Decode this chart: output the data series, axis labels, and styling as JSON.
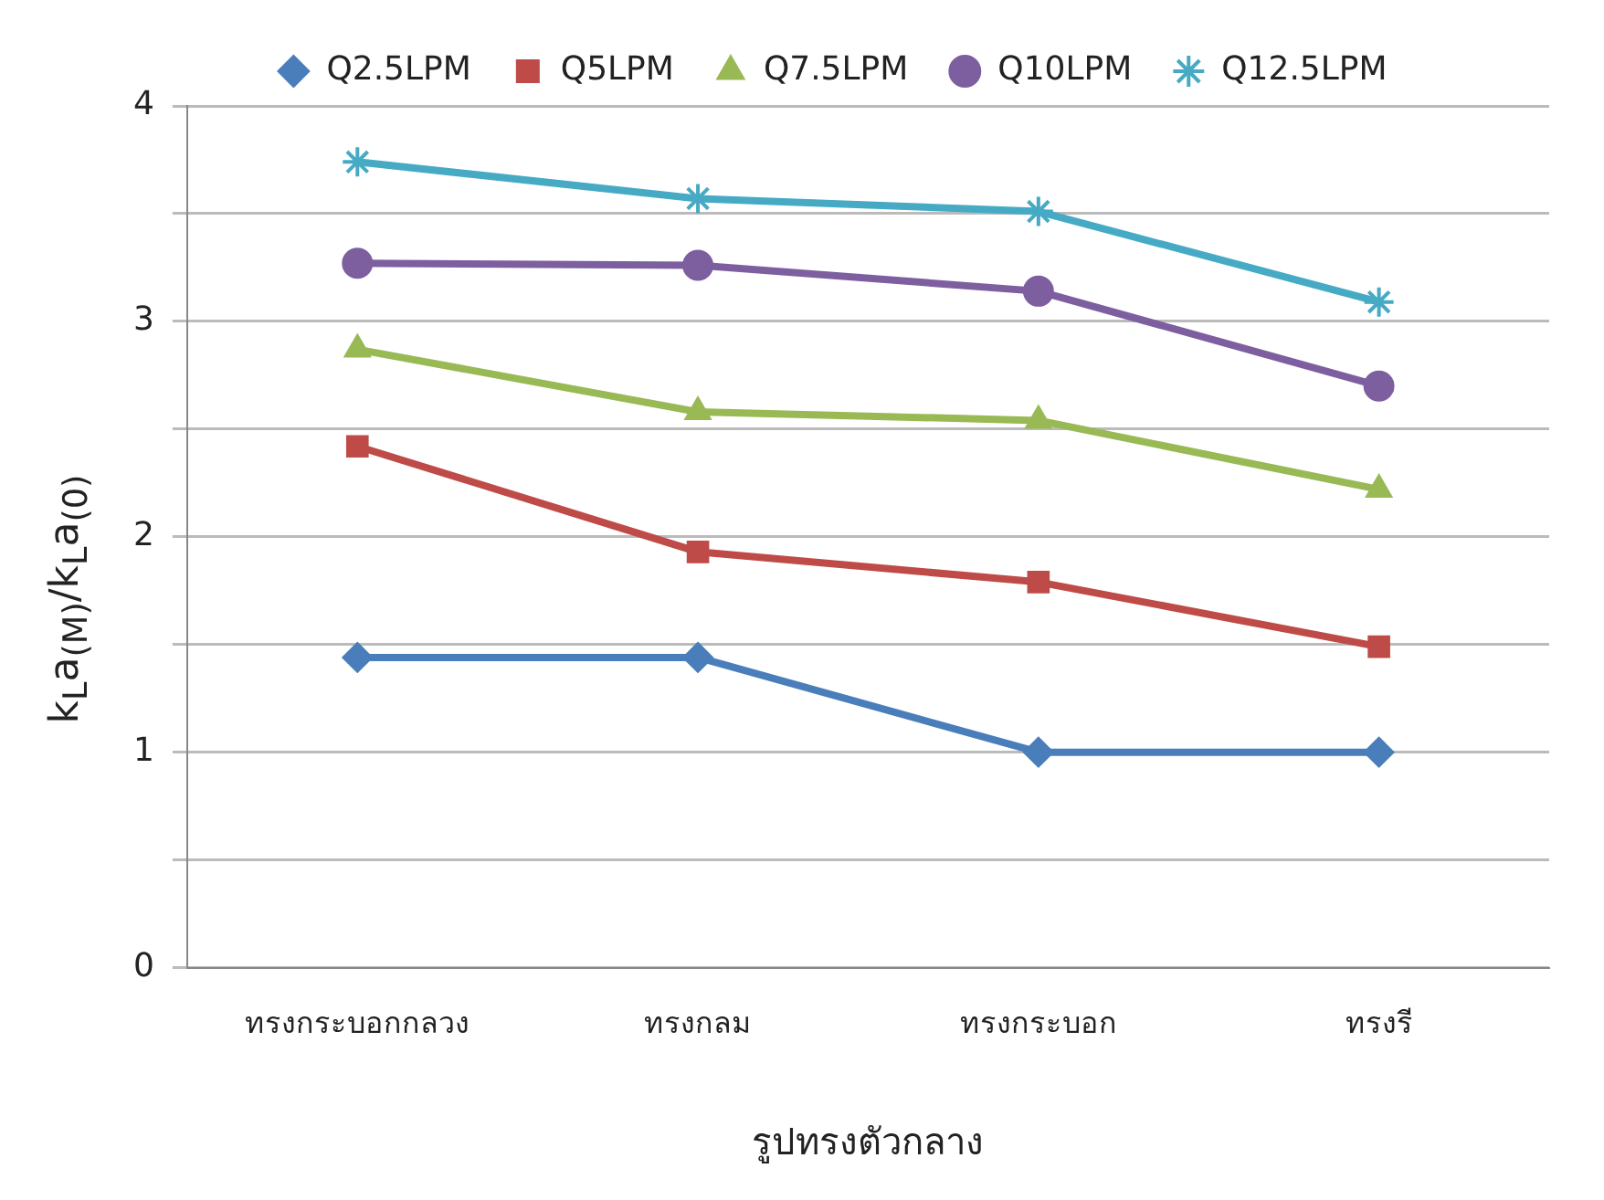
{
  "chart_data": {
    "type": "line",
    "xlabel": "รูปทรงตัวกลาง",
    "ylabel": "k$_{L}$a$_{(M)}$/k$_{L}$a$_{(0)}$",
    "categories": [
      "ทรงกระบอกกลวง",
      "ทรงกลม",
      "ทรงกระบอก",
      "ทรงรี"
    ],
    "series": [
      {
        "name": "Q2.5LPM",
        "color": "#4a7ebb",
        "marker": "diamond",
        "values": [
          1.44,
          1.44,
          1.0,
          1.0
        ]
      },
      {
        "name": "Q5LPM",
        "color": "#be4b48",
        "marker": "square",
        "values": [
          2.42,
          1.93,
          1.79,
          1.49
        ]
      },
      {
        "name": "Q7.5LPM",
        "color": "#98b954",
        "marker": "triangle",
        "values": [
          2.87,
          2.58,
          2.54,
          2.22
        ]
      },
      {
        "name": "Q10LPM",
        "color": "#7d5fa0",
        "marker": "circle",
        "values": [
          3.27,
          3.26,
          3.14,
          2.7
        ]
      },
      {
        "name": "Q12.5LPM",
        "color": "#46aac5",
        "marker": "cross",
        "values": [
          3.74,
          3.57,
          3.51,
          3.09
        ]
      }
    ],
    "ylim": [
      0,
      4
    ],
    "yticks": [
      0,
      {
        "value": 0.5,
        "label": null
      },
      1,
      {
        "value": 1.5,
        "label": null
      },
      2,
      {
        "value": 2.5,
        "label": null
      },
      3,
      {
        "value": 3.5,
        "label": null
      },
      4
    ],
    "grid": "y",
    "legend": "top",
    "line_style": "solid"
  }
}
